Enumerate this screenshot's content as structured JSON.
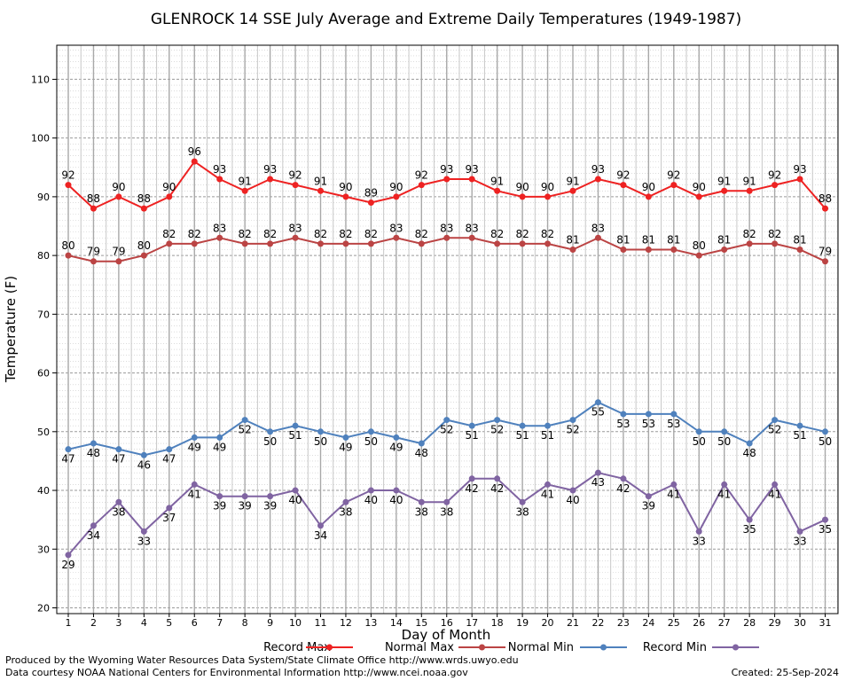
{
  "chart_data": {
    "type": "line",
    "title": "GLENROCK 14 SSE July Average and Extreme Daily Temperatures (1949-1987)",
    "xlabel": "Day of Month",
    "ylabel": "Temperature (F)",
    "ylim": [
      18,
      116
    ],
    "y_ticks": [
      20,
      30,
      40,
      50,
      60,
      70,
      80,
      90,
      100,
      110
    ],
    "grid": true,
    "legend_position": "bottom",
    "categories": [
      1,
      2,
      3,
      4,
      5,
      6,
      7,
      8,
      9,
      10,
      11,
      12,
      13,
      14,
      15,
      16,
      17,
      18,
      19,
      20,
      21,
      22,
      23,
      24,
      25,
      26,
      27,
      28,
      29,
      30,
      31
    ],
    "series": [
      {
        "name": "Record Max",
        "color": "#ee2222",
        "values": [
          92,
          88,
          90,
          88,
          90,
          96,
          93,
          91,
          93,
          92,
          91,
          90,
          89,
          90,
          92,
          93,
          93,
          91,
          90,
          90,
          91,
          93,
          92,
          90,
          92,
          90,
          91,
          91,
          92,
          93,
          88
        ]
      },
      {
        "name": "Normal Max",
        "color": "#bb4444",
        "values": [
          80,
          79,
          79,
          80,
          82,
          82,
          83,
          82,
          82,
          83,
          82,
          82,
          82,
          83,
          82,
          83,
          83,
          82,
          82,
          82,
          81,
          83,
          81,
          81,
          81,
          80,
          81,
          82,
          82,
          81,
          79
        ]
      },
      {
        "name": "Normal Min",
        "color": "#4f81bd",
        "values": [
          47,
          48,
          47,
          46,
          47,
          49,
          49,
          52,
          50,
          51,
          50,
          49,
          50,
          49,
          48,
          52,
          51,
          52,
          51,
          51,
          52,
          55,
          53,
          53,
          53,
          50,
          50,
          48,
          52,
          51,
          50
        ]
      },
      {
        "name": "Record Min",
        "color": "#8064a2",
        "values": [
          29,
          34,
          38,
          33,
          37,
          41,
          39,
          39,
          39,
          40,
          34,
          38,
          40,
          40,
          38,
          38,
          42,
          42,
          38,
          41,
          40,
          43,
          42,
          39,
          41,
          33,
          41,
          35,
          41,
          33,
          35
        ]
      }
    ]
  },
  "footer": {
    "left_line1": "Produced by the Wyoming Water Resources Data System/State Climate Office http://www.wrds.uwyo.edu",
    "left_line2": "Data courtesy NOAA National Centers for Environmental Information http://www.ncei.noaa.gov",
    "created": "Created:  25-Sep-2024"
  }
}
